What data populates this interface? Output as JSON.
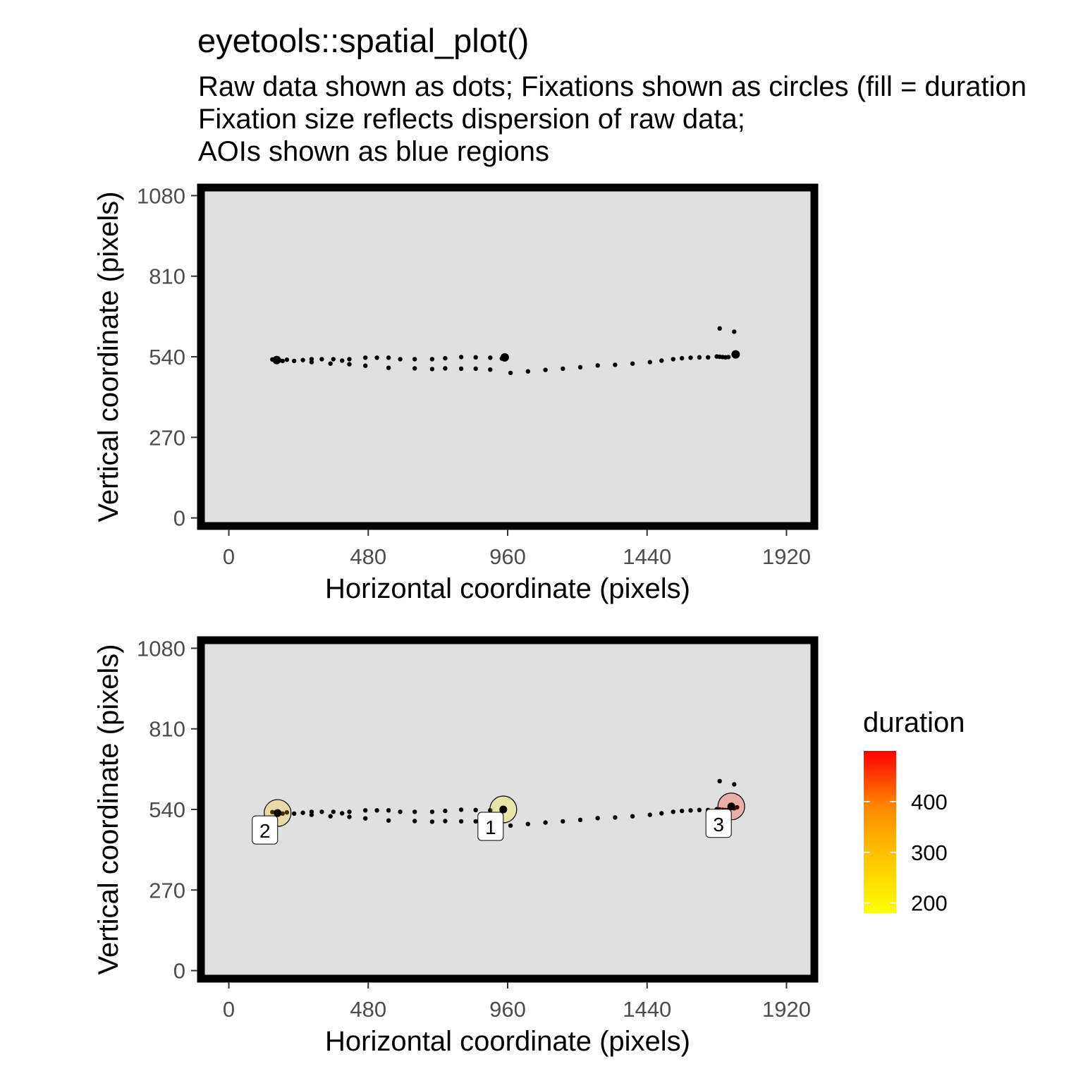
{
  "title": "eyetools::spatial_plot()",
  "subtitle_lines": [
    "Raw data shown as dots; Fixations shown as circles (fill = duration",
    "Fixation size reflects dispersion of raw data;",
    "AOIs shown as blue regions"
  ],
  "chart_data": [
    {
      "type": "scatter",
      "panel": "top",
      "xlabel": "Horizontal coordinate (pixels)",
      "ylabel": "Vertical coordinate (pixels)",
      "xlim": [
        -96,
        2016
      ],
      "ylim": [
        -27,
        1107
      ],
      "xticks": [
        0,
        480,
        960,
        1440,
        1920
      ],
      "yticks": [
        0,
        270,
        540,
        810,
        1080
      ],
      "grid": false,
      "background": "#e0e0e0",
      "raw_points": [
        [
          150,
          531
        ],
        [
          160,
          530
        ],
        [
          170,
          529
        ],
        [
          175,
          528
        ],
        [
          185,
          526
        ],
        [
          200,
          530
        ],
        [
          225,
          526
        ],
        [
          255,
          529
        ],
        [
          285,
          532
        ],
        [
          285,
          522
        ],
        [
          320,
          532
        ],
        [
          350,
          517
        ],
        [
          360,
          532
        ],
        [
          390,
          527
        ],
        [
          415,
          532
        ],
        [
          415,
          515
        ],
        [
          470,
          537
        ],
        [
          470,
          510
        ],
        [
          510,
          537
        ],
        [
          550,
          537
        ],
        [
          550,
          503
        ],
        [
          590,
          532
        ],
        [
          640,
          532
        ],
        [
          640,
          501
        ],
        [
          700,
          532
        ],
        [
          700,
          499
        ],
        [
          745,
          535
        ],
        [
          745,
          501
        ],
        [
          800,
          539
        ],
        [
          800,
          500
        ],
        [
          850,
          538
        ],
        [
          850,
          500
        ],
        [
          900,
          537
        ],
        [
          900,
          497
        ],
        [
          940,
          534
        ],
        [
          945,
          537
        ],
        [
          970,
          486
        ],
        [
          1030,
          491
        ],
        [
          1090,
          496
        ],
        [
          1150,
          500
        ],
        [
          1210,
          505
        ],
        [
          1270,
          511
        ],
        [
          1330,
          513
        ],
        [
          1390,
          517
        ],
        [
          1450,
          522
        ],
        [
          1490,
          527
        ],
        [
          1530,
          532
        ],
        [
          1560,
          535
        ],
        [
          1590,
          537
        ],
        [
          1620,
          538
        ],
        [
          1650,
          538
        ],
        [
          1680,
          541
        ],
        [
          1690,
          540
        ],
        [
          1700,
          539
        ],
        [
          1710,
          538
        ],
        [
          1720,
          539
        ],
        [
          1740,
          544
        ],
        [
          1750,
          547
        ],
        [
          1690,
          635
        ],
        [
          1740,
          624
        ]
      ],
      "fixation_markers": [
        [
          165,
          529
        ],
        [
          950,
          538
        ],
        [
          1745,
          548
        ]
      ]
    },
    {
      "type": "scatter",
      "panel": "bottom",
      "xlabel": "Horizontal coordinate (pixels)",
      "ylabel": "Vertical coordinate (pixels)",
      "xlim": [
        -96,
        2016
      ],
      "ylim": [
        -27,
        1107
      ],
      "xticks": [
        0,
        480,
        960,
        1440,
        1920
      ],
      "yticks": [
        0,
        270,
        540,
        810,
        1080
      ],
      "grid": false,
      "background": "#e0e0e0",
      "raw_points": [
        [
          150,
          531
        ],
        [
          160,
          530
        ],
        [
          170,
          529
        ],
        [
          175,
          528
        ],
        [
          185,
          526
        ],
        [
          200,
          530
        ],
        [
          225,
          526
        ],
        [
          255,
          529
        ],
        [
          285,
          532
        ],
        [
          285,
          522
        ],
        [
          320,
          532
        ],
        [
          350,
          517
        ],
        [
          360,
          532
        ],
        [
          390,
          527
        ],
        [
          415,
          532
        ],
        [
          415,
          515
        ],
        [
          470,
          537
        ],
        [
          470,
          510
        ],
        [
          510,
          537
        ],
        [
          550,
          537
        ],
        [
          550,
          503
        ],
        [
          590,
          532
        ],
        [
          640,
          532
        ],
        [
          640,
          501
        ],
        [
          700,
          532
        ],
        [
          700,
          499
        ],
        [
          745,
          535
        ],
        [
          745,
          501
        ],
        [
          800,
          539
        ],
        [
          800,
          500
        ],
        [
          850,
          538
        ],
        [
          850,
          500
        ],
        [
          900,
          537
        ],
        [
          900,
          497
        ],
        [
          940,
          534
        ],
        [
          945,
          537
        ],
        [
          970,
          486
        ],
        [
          1030,
          491
        ],
        [
          1090,
          496
        ],
        [
          1150,
          500
        ],
        [
          1210,
          505
        ],
        [
          1270,
          511
        ],
        [
          1330,
          513
        ],
        [
          1390,
          517
        ],
        [
          1450,
          522
        ],
        [
          1490,
          527
        ],
        [
          1530,
          532
        ],
        [
          1560,
          535
        ],
        [
          1590,
          537
        ],
        [
          1620,
          538
        ],
        [
          1650,
          538
        ],
        [
          1680,
          541
        ],
        [
          1690,
          540
        ],
        [
          1700,
          539
        ],
        [
          1710,
          538
        ],
        [
          1720,
          539
        ],
        [
          1740,
          544
        ],
        [
          1750,
          547
        ],
        [
          1690,
          635
        ],
        [
          1740,
          624
        ]
      ],
      "fixations": [
        {
          "label": "1",
          "x": 945,
          "y": 540,
          "duration": 200
        },
        {
          "label": "2",
          "x": 168,
          "y": 528,
          "duration": 255
        },
        {
          "label": "3",
          "x": 1730,
          "y": 550,
          "duration": 470
        }
      ],
      "legend": {
        "title": "duration",
        "placement": "right",
        "ticks": [
          200,
          300,
          400
        ],
        "range": [
          180,
          500
        ],
        "colors": [
          "#ffff00",
          "#ff0000"
        ]
      }
    }
  ]
}
